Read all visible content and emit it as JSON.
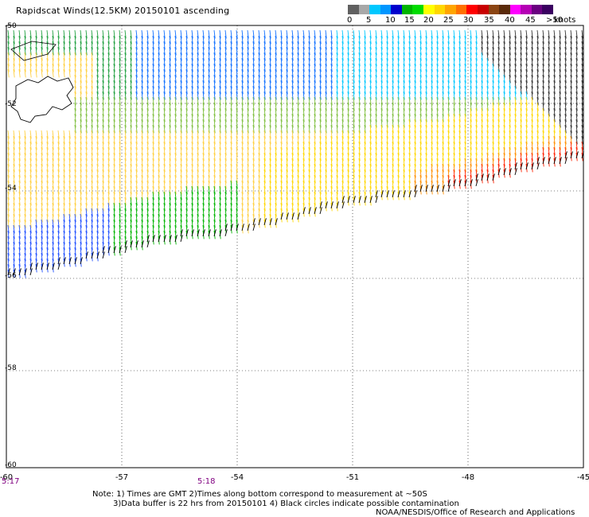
{
  "header": {
    "title": "Rapidscat Winds(12.5KM) 20150101 ascending"
  },
  "legend": {
    "labels": [
      "0",
      "5",
      "10",
      "15",
      "20",
      "25",
      "30",
      "35",
      "40",
      "45",
      ">50"
    ],
    "units": "knots",
    "colors": [
      "#606060",
      "#a8a8a8",
      "#00c8ff",
      "#0096ff",
      "#0000cd",
      "#00b400",
      "#00dc00",
      "#ffff00",
      "#ffd700",
      "#ffa500",
      "#ff7000",
      "#ff0000",
      "#c80000",
      "#8b4513",
      "#5a2a0a",
      "#ff00ff",
      "#b400b4",
      "#6a0080",
      "#3a0060"
    ]
  },
  "axes": {
    "x_ticks": [
      "-60",
      "-57",
      "-54",
      "-51",
      "-48",
      "-45"
    ],
    "y_ticks": [
      "-50",
      "-52",
      "-54",
      "-56",
      "-58",
      "-60"
    ]
  },
  "times": [
    "5:17",
    "5:18"
  ],
  "notes": {
    "line1": "Note: 1) Times are GMT 2)Times along bottom correspond to measurement at ~50S",
    "line2": "3)Data buffer is 22 hrs from 20150101 4) Black circles indicate possible contamination",
    "line3": "NOAA/NESDIS/Office of Research and Applications"
  }
}
